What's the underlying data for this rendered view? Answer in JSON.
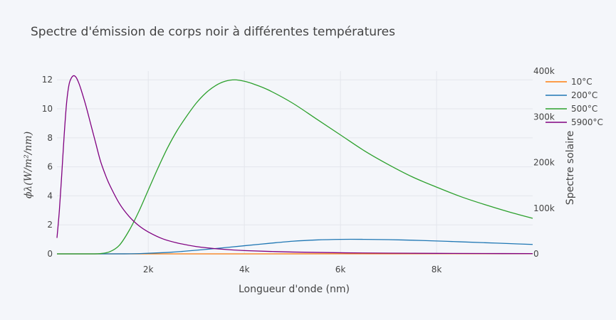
{
  "chart_data": {
    "type": "line",
    "title": "Spectre d'émission de corps noir à différentes températures",
    "xlabel": "Longueur d'onde (nm)",
    "ylabel": "ϕλ(W/m²/nm)",
    "y2label": "Spectre solaire",
    "xlim": [
      100,
      10000
    ],
    "ylim": [
      0,
      12.6
    ],
    "y2lim": [
      0,
      400000
    ],
    "x_ticks": [
      {
        "value": 2000,
        "label": "2k"
      },
      {
        "value": 4000,
        "label": "4k"
      },
      {
        "value": 6000,
        "label": "6k"
      },
      {
        "value": 8000,
        "label": "8k"
      }
    ],
    "y_ticks": [
      {
        "value": 0,
        "label": "0"
      },
      {
        "value": 2,
        "label": "2"
      },
      {
        "value": 4,
        "label": "4"
      },
      {
        "value": 6,
        "label": "6"
      },
      {
        "value": 8,
        "label": "8"
      },
      {
        "value": 10,
        "label": "10"
      },
      {
        "value": 12,
        "label": "12"
      }
    ],
    "y2_ticks": [
      {
        "value": 0,
        "label": "0"
      },
      {
        "value": 100000,
        "label": "100k"
      },
      {
        "value": 200000,
        "label": "200k"
      },
      {
        "value": 300000,
        "label": "300k"
      },
      {
        "value": 400000,
        "label": "400k"
      }
    ],
    "grid": true,
    "legend_position": "top-right",
    "series": [
      {
        "name": "10°C",
        "color": "#ff7f0e",
        "axis": "y",
        "x": [
          100,
          2000,
          4000,
          6000,
          8000,
          10000
        ],
        "y": [
          0,
          0,
          0,
          0.005,
          0.012,
          0.02
        ]
      },
      {
        "name": "200°C",
        "color": "#1f77b4",
        "axis": "y",
        "x": [
          100,
          1500,
          2000,
          2500,
          3000,
          3500,
          4000,
          4500,
          5000,
          5500,
          6000,
          6500,
          7000,
          7500,
          8000,
          8500,
          9000,
          9500,
          10000
        ],
        "y": [
          0,
          0.002,
          0.04,
          0.12,
          0.25,
          0.4,
          0.56,
          0.72,
          0.87,
          0.96,
          1.0,
          1.0,
          0.98,
          0.94,
          0.89,
          0.83,
          0.77,
          0.71,
          0.65
        ]
      },
      {
        "name": "500°C",
        "color": "#2ca02c",
        "axis": "y",
        "x": [
          100,
          800,
          1000,
          1200,
          1400,
          1600,
          1800,
          2000,
          2200,
          2400,
          2600,
          2800,
          3000,
          3200,
          3400,
          3600,
          3800,
          4000,
          4200,
          4500,
          5000,
          5500,
          6000,
          6500,
          7000,
          7500,
          8000,
          8500,
          9000,
          9500,
          10000
        ],
        "y": [
          0,
          0,
          0.02,
          0.15,
          0.6,
          1.6,
          2.9,
          4.4,
          5.9,
          7.3,
          8.5,
          9.5,
          10.4,
          11.1,
          11.6,
          11.9,
          12.0,
          11.9,
          11.7,
          11.3,
          10.4,
          9.3,
          8.2,
          7.1,
          6.15,
          5.3,
          4.6,
          3.95,
          3.4,
          2.9,
          2.45
        ]
      },
      {
        "name": "5900°C",
        "color": "#800080",
        "axis": "y2",
        "x": [
          100,
          150,
          200,
          250,
          300,
          350,
          400,
          450,
          500,
          550,
          600,
          700,
          800,
          900,
          1000,
          1100,
          1200,
          1400,
          1600,
          1800,
          2000,
          2300,
          2600,
          3000,
          3500,
          4000,
          5000,
          6000,
          7000,
          8000,
          9000,
          10000
        ],
        "y": [
          35000,
          95000,
          175000,
          260000,
          330000,
          370000,
          385000,
          390000,
          386000,
          375000,
          360000,
          325000,
          285000,
          245000,
          205000,
          175000,
          150000,
          110000,
          82000,
          62000,
          48000,
          33000,
          24000,
          16000,
          10500,
          7200,
          4000,
          2400,
          1550,
          1050,
          750,
          550
        ]
      }
    ]
  }
}
